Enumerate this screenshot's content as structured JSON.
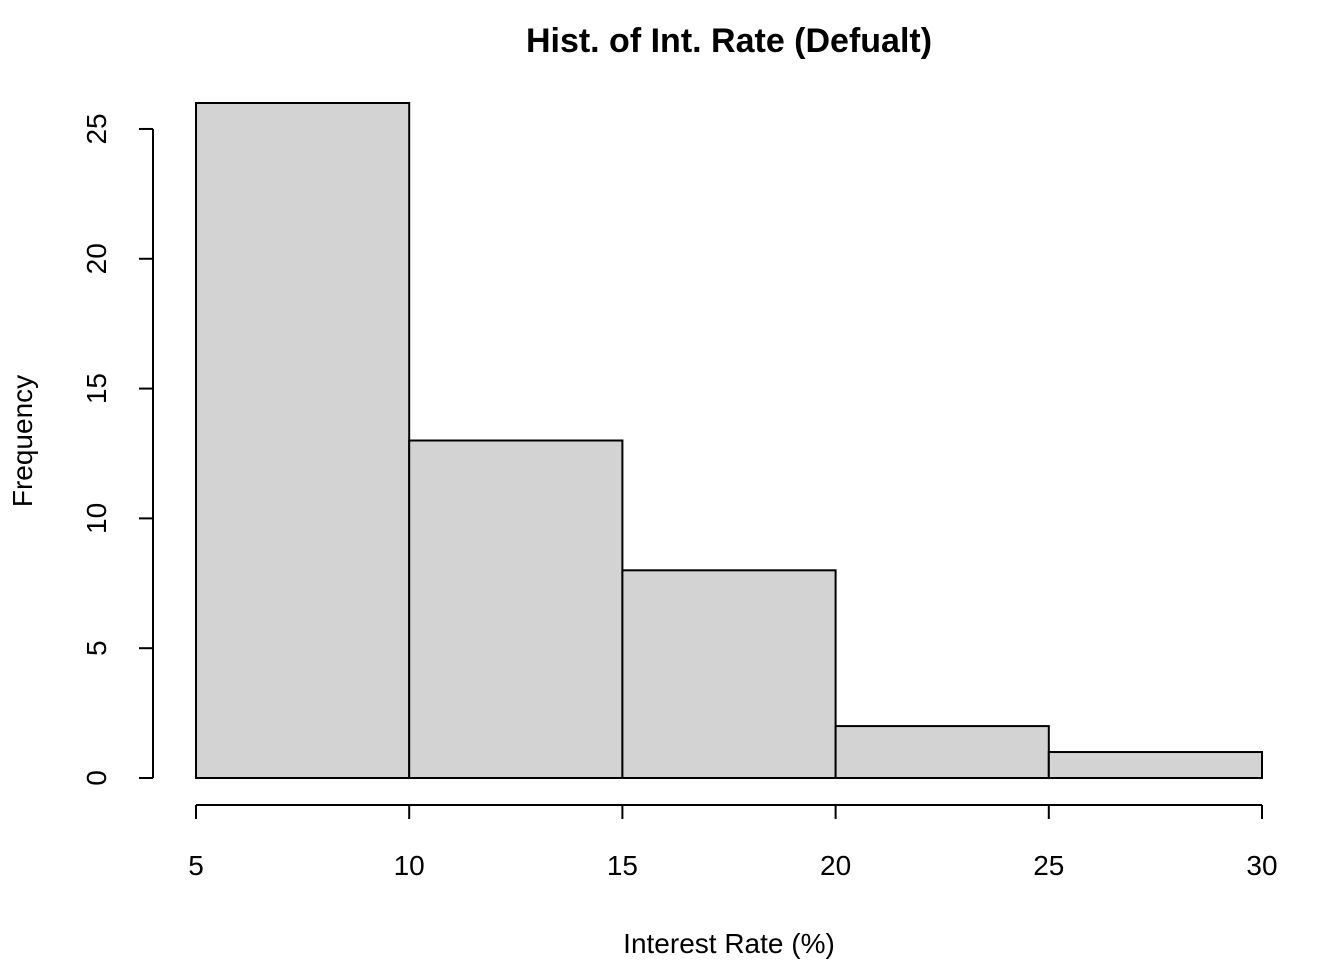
{
  "chart_data": {
    "type": "bar",
    "title": "Hist. of Int. Rate (Defualt)",
    "xlabel": "Interest Rate (%)",
    "ylabel": "Frequency",
    "bins": [
      {
        "from": 5,
        "to": 10,
        "count": 26
      },
      {
        "from": 10,
        "to": 15,
        "count": 13
      },
      {
        "from": 15,
        "to": 20,
        "count": 8
      },
      {
        "from": 20,
        "to": 25,
        "count": 2
      },
      {
        "from": 25,
        "to": 30,
        "count": 1
      }
    ],
    "xlim": [
      5,
      30
    ],
    "ylim": [
      0,
      26
    ],
    "x_ticks": [
      5,
      10,
      15,
      20,
      25,
      30
    ],
    "y_ticks": [
      0,
      5,
      10,
      15,
      20,
      25
    ],
    "bar_color": "#d3d3d3",
    "grid": false
  }
}
